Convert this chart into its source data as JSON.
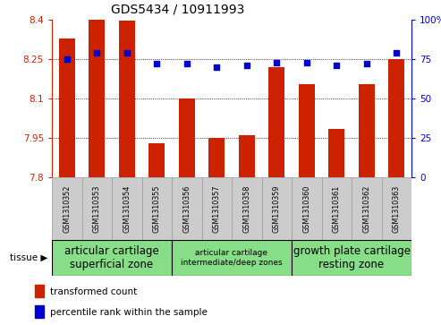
{
  "title": "GDS5434 / 10911993",
  "samples": [
    "GSM1310352",
    "GSM1310353",
    "GSM1310354",
    "GSM1310355",
    "GSM1310356",
    "GSM1310357",
    "GSM1310358",
    "GSM1310359",
    "GSM1310360",
    "GSM1310361",
    "GSM1310362",
    "GSM1310363"
  ],
  "transformed_counts": [
    8.33,
    8.4,
    8.395,
    7.93,
    8.1,
    7.95,
    7.96,
    8.22,
    8.155,
    7.985,
    8.155,
    8.25
  ],
  "percentile_ranks": [
    75,
    79,
    79,
    72,
    72,
    70,
    71,
    73,
    73,
    71,
    72,
    79
  ],
  "ylim_left": [
    7.8,
    8.4
  ],
  "ylim_right": [
    0,
    100
  ],
  "yticks_left": [
    7.8,
    7.95,
    8.1,
    8.25,
    8.4
  ],
  "yticks_right": [
    0,
    25,
    50,
    75,
    100
  ],
  "ytick_labels_left": [
    "7.8",
    "7.95",
    "8.1",
    "8.25",
    "8.4"
  ],
  "ytick_labels_right": [
    "0",
    "25",
    "50",
    "75",
    "100%"
  ],
  "bar_color": "#cc2200",
  "dot_color": "#0000cc",
  "grid_color": "#000000",
  "tissue_groups": [
    {
      "label": "articular cartilage\nsuperficial zone",
      "start": 0,
      "end": 4,
      "color": "#88dd88",
      "fontsize": 8.5
    },
    {
      "label": "articular cartilage\nintermediate/deep zones",
      "start": 4,
      "end": 8,
      "color": "#88dd88",
      "fontsize": 6.5
    },
    {
      "label": "growth plate cartilage\nresting zone",
      "start": 8,
      "end": 12,
      "color": "#88dd88",
      "fontsize": 8.5
    }
  ],
  "legend_items": [
    {
      "color": "#cc2200",
      "label": "transformed count"
    },
    {
      "color": "#0000cc",
      "label": "percentile rank within the sample"
    }
  ],
  "tissue_label": "tissue",
  "left_axis_color": "#cc2200",
  "right_axis_color": "#0000cc",
  "bar_width": 0.55,
  "base_value": 7.8,
  "sample_box_color": "#cccccc",
  "sample_box_edge": "#999999"
}
